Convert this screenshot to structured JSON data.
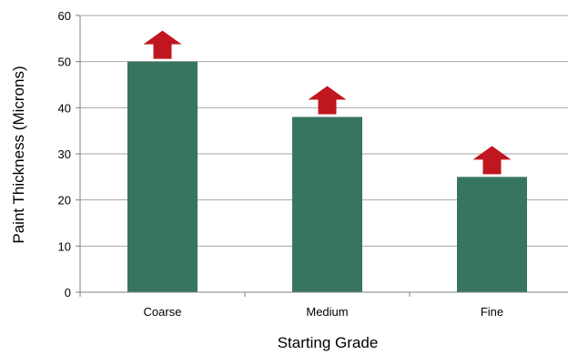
{
  "chart_data": {
    "type": "bar",
    "title": "",
    "xlabel": "Starting Grade",
    "ylabel": "Paint Thickness (Microns)",
    "categories": [
      "Coarse",
      "Medium",
      "Fine"
    ],
    "values": [
      50,
      38,
      25
    ],
    "ylim": [
      0,
      60
    ],
    "yticks": [
      "0",
      "10",
      "20",
      "30",
      "40",
      "50",
      "60"
    ],
    "grid": true,
    "legend": "none",
    "annotations": "red upward arrow above each bar",
    "colors": {
      "bar": "#377561",
      "arrow": "#c0161f",
      "grid": "#a6a6a6"
    }
  }
}
